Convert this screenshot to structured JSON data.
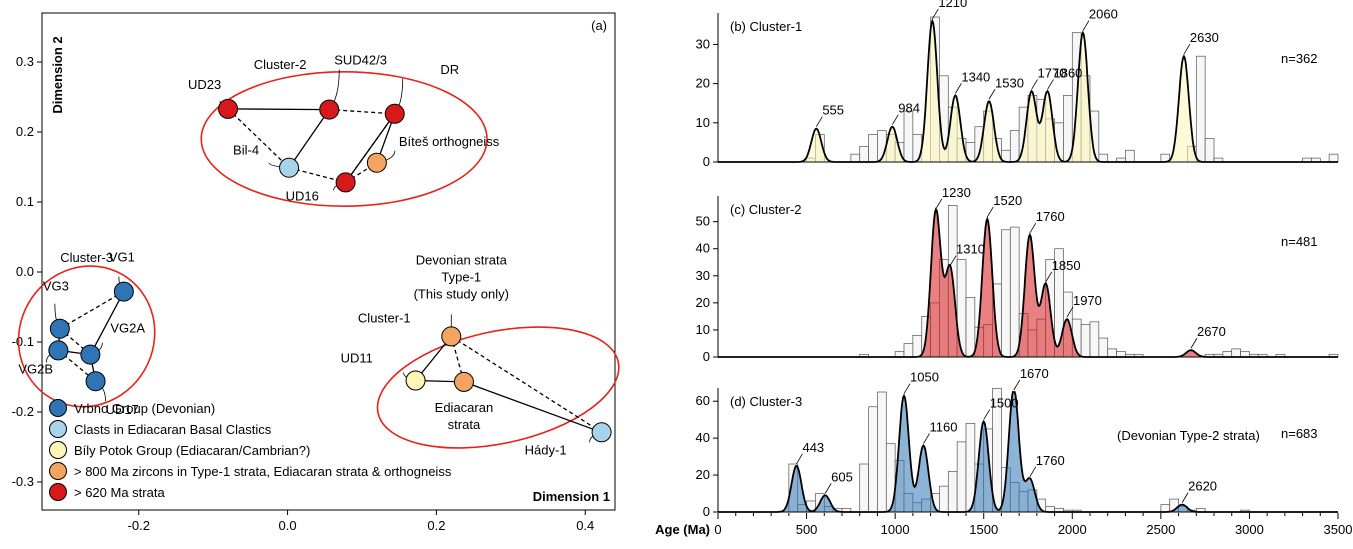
{
  "colors": {
    "vrbno": "#2f74b5",
    "clasts": "#a9d3ea",
    "bily": "#fdf6b6",
    "type1": "#f2a460",
    "strata620": "#d7191c",
    "cluster_outline": "#e8221c",
    "bar_fill": "#f2f2f2"
  },
  "chart_data": [
    {
      "id": "a",
      "type": "scatter",
      "panel_label": "(a)",
      "xlabel": "Dimension 1",
      "ylabel": "Dimension 2",
      "xlim": [
        -0.33,
        0.44
      ],
      "ylim": [
        -0.34,
        0.37
      ],
      "xticks": [
        -0.2,
        0.0,
        0.2,
        0.4
      ],
      "xtick_labels": [
        "-0.2",
        "0.0",
        "0.2",
        "0.4"
      ],
      "yticks": [
        0.3,
        0.2,
        0.1,
        0.0,
        -0.1,
        -0.2,
        -0.3
      ],
      "ytick_labels": [
        "0.3",
        "0.2",
        "0.1",
        "0.0",
        "-0.1",
        "-0.2",
        "-0.3"
      ],
      "points": [
        {
          "id": "UD23",
          "name": "UD23",
          "x": -0.08,
          "y": 0.233,
          "group": "strata620"
        },
        {
          "id": "SUD42",
          "name": "SUD42/3",
          "x": 0.056,
          "y": 0.232,
          "group": "strata620"
        },
        {
          "id": "DR",
          "name": "DR",
          "x": 0.144,
          "y": 0.226,
          "group": "strata620"
        },
        {
          "id": "BIL4",
          "name": "Bil-4",
          "x": 0.002,
          "y": 0.149,
          "group": "clasts"
        },
        {
          "id": "BITES",
          "name": "Bíteš orthogneiss",
          "x": 0.12,
          "y": 0.156,
          "group": "type1"
        },
        {
          "id": "UD16",
          "name": "UD16",
          "x": 0.078,
          "y": 0.128,
          "group": "strata620"
        },
        {
          "id": "VG1",
          "name": "VG1",
          "x": -0.22,
          "y": -0.028,
          "group": "vrbno"
        },
        {
          "id": "VG3",
          "name": "VG3",
          "x": -0.306,
          "y": -0.081,
          "group": "vrbno"
        },
        {
          "id": "VG2A",
          "name": "VG2A",
          "x": -0.265,
          "y": -0.118,
          "group": "vrbno"
        },
        {
          "id": "VG2B",
          "name": "VG2B",
          "x": -0.308,
          "y": -0.112,
          "group": "vrbno"
        },
        {
          "id": "UD17",
          "name": "UD17",
          "x": -0.258,
          "y": -0.156,
          "group": "vrbno"
        },
        {
          "id": "DEV1",
          "name": "Devonian strata\nType-1\n(This study only)",
          "x": 0.22,
          "y": -0.092,
          "group": "type1"
        },
        {
          "id": "UD11",
          "name": "UD11",
          "x": 0.172,
          "y": -0.155,
          "group": "bily"
        },
        {
          "id": "EDI",
          "name": "Ediacaran\nstrata",
          "x": 0.237,
          "y": -0.157,
          "group": "type1"
        },
        {
          "id": "HADY",
          "name": "Hády-1",
          "x": 0.422,
          "y": -0.229,
          "group": "clasts"
        }
      ],
      "solid_links": [
        [
          "UD23",
          "SUD42"
        ],
        [
          "SUD42",
          "BIL4"
        ],
        [
          "DR",
          "UD16"
        ],
        [
          "DR",
          "BITES"
        ],
        [
          "VG1",
          "VG2A"
        ],
        [
          "VG3",
          "VG2B"
        ],
        [
          "VG2A",
          "VG2B"
        ],
        [
          "VG2A",
          "UD17"
        ],
        [
          "DEV1",
          "UD11"
        ],
        [
          "UD11",
          "EDI"
        ],
        [
          "EDI",
          "HADY"
        ]
      ],
      "dashed_links": [
        [
          "UD23",
          "BIL4"
        ],
        [
          "BIL4",
          "UD16"
        ],
        [
          "UD16",
          "BITES"
        ],
        [
          "SUD42",
          "DR"
        ],
        [
          "DR",
          "UD16"
        ],
        [
          "VG3",
          "VG1"
        ],
        [
          "VG3",
          "VG2A"
        ],
        [
          "VG2B",
          "UD17"
        ],
        [
          "DEV1",
          "EDI"
        ],
        [
          "DEV1",
          "HADY"
        ]
      ],
      "clusters": [
        {
          "name": "Cluster-2",
          "cx": 0.076,
          "cy": 0.19,
          "rx": 0.192,
          "ry": 0.096,
          "rot": 0
        },
        {
          "name": "Cluster-3",
          "cx": -0.27,
          "cy": -0.092,
          "rx": 0.09,
          "ry": 0.102,
          "rot": 30
        },
        {
          "name": "Cluster-1",
          "cx": 0.283,
          "cy": -0.165,
          "rx": 0.165,
          "ry": 0.08,
          "rot": -12
        }
      ],
      "legend": [
        {
          "group": "vrbno",
          "label": "Vrbno Group (Devonian)"
        },
        {
          "group": "clasts",
          "label": "Clasts in Ediacaran Basal Clastics"
        },
        {
          "group": "bily",
          "label": "Bíly Potok Group (Ediacaran/Cambrian?)"
        },
        {
          "group": "type1",
          "label": "> 800 Ma zircons in Type-1 strata, Ediacaran strata & orthogneiss"
        },
        {
          "group": "strata620",
          "label": "> 620 Ma strata"
        }
      ]
    },
    {
      "id": "b",
      "type": "bar",
      "title": "(b) Cluster-1",
      "n_label": "n=362",
      "ylim": [
        0,
        37
      ],
      "yticks": [
        0,
        10,
        20,
        30
      ],
      "ytick_labels": [
        "0",
        "10",
        "20",
        "30"
      ],
      "accent": "#fdf6b6",
      "bin_start": 400,
      "bin_width": 50,
      "bars": [
        0,
        0,
        1,
        7,
        0,
        0,
        0,
        2,
        4,
        7,
        8,
        7,
        5,
        13,
        7,
        0,
        37,
        22,
        14,
        6,
        5,
        9,
        13,
        6,
        3,
        8,
        14,
        17,
        16,
        11,
        10,
        17,
        33,
        22,
        13,
        2,
        0,
        1,
        3,
        0,
        0,
        0,
        2,
        0,
        0,
        4,
        27,
        6,
        1,
        0,
        0,
        0,
        0,
        0,
        0,
        0,
        0,
        0,
        1,
        1,
        0,
        2
      ],
      "peaks": [
        [
          555,
          8.5
        ],
        [
          984,
          9
        ],
        [
          1210,
          36
        ],
        [
          1340,
          17
        ],
        [
          1530,
          15.5
        ],
        [
          1770,
          18
        ],
        [
          1860,
          18
        ],
        [
          2060,
          33
        ],
        [
          2630,
          27
        ]
      ],
      "peak_labels": [
        "555",
        "984",
        "1210",
        "1340",
        "1530",
        "1770",
        "1860",
        "2060",
        "2630"
      ]
    },
    {
      "id": "c",
      "type": "bar",
      "title": "(c) Cluster-2",
      "n_label": "n=481",
      "ylim": [
        0,
        58
      ],
      "yticks": [
        0,
        10,
        20,
        30,
        40,
        50
      ],
      "ytick_labels": [
        "0",
        "10",
        "20",
        "30",
        "40",
        "50"
      ],
      "accent": "#d7191c",
      "bin_start": 650,
      "bin_width": 50,
      "bars": [
        0,
        0,
        0,
        1,
        0,
        0,
        0,
        2,
        5,
        8,
        15,
        20,
        36,
        56,
        36,
        22,
        11,
        12,
        27,
        47,
        48,
        16,
        10,
        14,
        36,
        40,
        24,
        14,
        12,
        13,
        7,
        3,
        2,
        1,
        1,
        0,
        0,
        0,
        0,
        0,
        0,
        0,
        1,
        1,
        2,
        3,
        2,
        1,
        1,
        0,
        1,
        0,
        0,
        0,
        0,
        0,
        1
      ],
      "peaks": [
        [
          1230,
          54
        ],
        [
          1310,
          33
        ],
        [
          1520,
          51
        ],
        [
          1760,
          45
        ],
        [
          1850,
          27
        ],
        [
          1970,
          14
        ],
        [
          2670,
          2.5
        ]
      ],
      "peak_labels": [
        "1230",
        "1310",
        "1520",
        "1760",
        "1850",
        "1970",
        "2670"
      ]
    },
    {
      "id": "d",
      "type": "bar",
      "title": "(d) Cluster-3",
      "subtitle": "(Devonian Type-2 strata)",
      "n_label": "n=683",
      "ylim": [
        0,
        65
      ],
      "yticks": [
        0,
        20,
        40,
        60
      ],
      "ytick_labels": [
        "0",
        "20",
        "40",
        "60"
      ],
      "accent": "#2f74b5",
      "bin_start": 400,
      "bin_width": 50,
      "bars": [
        26,
        4,
        6,
        10,
        3,
        2,
        2,
        0,
        26,
        57,
        65,
        37,
        28,
        10,
        5,
        7,
        10,
        14,
        22,
        38,
        48,
        26,
        45,
        67,
        24,
        16,
        11,
        12,
        7,
        3,
        2,
        1,
        1,
        0,
        0,
        0,
        0,
        0,
        0,
        0,
        0,
        0,
        4,
        7,
        3,
        1,
        2,
        0,
        0,
        0,
        0,
        1
      ],
      "peaks": [
        [
          443,
          25
        ],
        [
          605,
          9
        ],
        [
          1050,
          63
        ],
        [
          1160,
          36
        ],
        [
          1500,
          49
        ],
        [
          1670,
          67
        ],
        [
          1760,
          18
        ],
        [
          2620,
          4
        ]
      ],
      "peak_labels": [
        "443",
        "605",
        "1050",
        "1160",
        "1500",
        "1670",
        "1760",
        "2620"
      ]
    }
  ],
  "age_axis": {
    "label": "Age (Ma)",
    "xlim": [
      0,
      3500
    ],
    "xticks": [
      0,
      500,
      1000,
      1500,
      2000,
      2500,
      3000,
      3500
    ],
    "xtick_labels": [
      "0",
      "500",
      "1000",
      "1500",
      "2000",
      "2500",
      "3000",
      "3500"
    ]
  }
}
